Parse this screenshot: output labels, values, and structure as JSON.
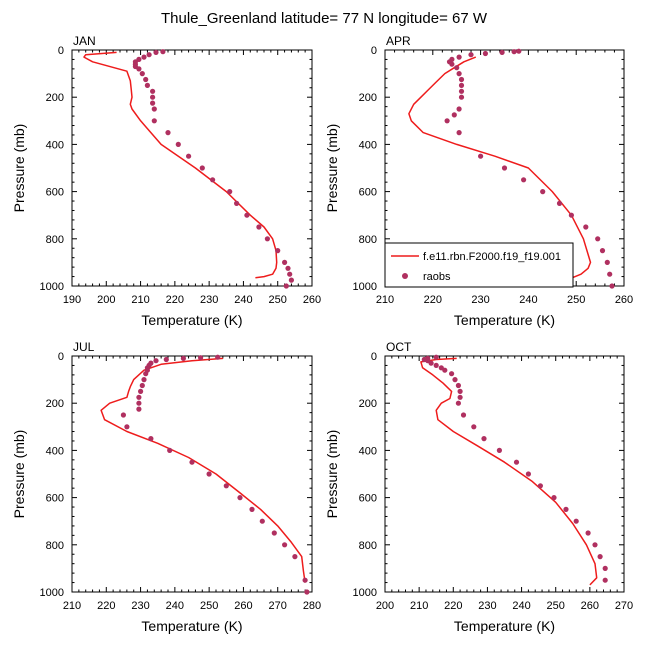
{
  "figure": {
    "title": "Thule_Greenland  latitude= 77 N longitude= 67 W",
    "colors": {
      "model": "#ee1c1c",
      "obs": "#b03060",
      "axis": "#000000"
    },
    "legend": {
      "model_label": "f.e11.rbn.F2000.f19_f19.001",
      "obs_label": "raobs"
    }
  },
  "chart_data": [
    {
      "type": "line",
      "panel": "JAN",
      "xlabel": "Temperature (K)",
      "ylabel": "Pressure (mb)",
      "xlim": [
        190,
        260
      ],
      "xticks": [
        190,
        200,
        210,
        220,
        230,
        240,
        250,
        260
      ],
      "ylim": [
        1000,
        0
      ],
      "yticks": [
        0,
        200,
        400,
        600,
        800,
        1000
      ],
      "model": {
        "name": "f.e11.rbn.F2000.f19_f19.001",
        "temperature": [
          203,
          194,
          193.5,
          196,
          206,
          207,
          207.3,
          207.5,
          207,
          207.5,
          210,
          216,
          226,
          235,
          242,
          246,
          248.5,
          249.5,
          249.7,
          249.5,
          248.5,
          246,
          243.5
        ],
        "pressure": [
          10,
          20,
          30,
          50,
          90,
          130,
          170,
          200,
          230,
          250,
          300,
          400,
          500,
          600,
          700,
          750,
          800,
          850,
          900,
          925,
          950,
          960,
          965
        ]
      },
      "obs": {
        "name": "raobs",
        "temperature": [
          216.5,
          214.5,
          212.5,
          211,
          209.5,
          208.5,
          208.5,
          208.5,
          209.5,
          210.5,
          211.5,
          212,
          213.5,
          213.5,
          213.5,
          214,
          214,
          218,
          221,
          224,
          228,
          231,
          236,
          238,
          241,
          244.5,
          247,
          250,
          252,
          253,
          253.5,
          254,
          252.5
        ],
        "pressure": [
          7,
          10,
          20,
          30,
          40,
          50,
          60,
          70,
          80,
          100,
          125,
          150,
          175,
          200,
          225,
          250,
          300,
          350,
          400,
          450,
          500,
          550,
          600,
          650,
          700,
          750,
          800,
          850,
          900,
          925,
          950,
          975,
          1000
        ]
      }
    },
    {
      "type": "line",
      "panel": "APR",
      "xlabel": "Temperature (K)",
      "ylabel": "Pressure (mb)",
      "xlim": [
        210,
        260
      ],
      "xticks": [
        210,
        220,
        230,
        240,
        250,
        260
      ],
      "ylim": [
        1000,
        0
      ],
      "yticks": [
        0,
        200,
        400,
        600,
        800,
        1000
      ],
      "model": {
        "name": "f.e11.rbn.F2000.f19_f19.001",
        "temperature": [
          229,
          226.5,
          224.5,
          222.5,
          220.5,
          219,
          217.5,
          216,
          215,
          215.5,
          218,
          225,
          233,
          240,
          245,
          249,
          251.5,
          253,
          252.5,
          251,
          248
        ],
        "pressure": [
          30,
          50,
          75,
          100,
          140,
          170,
          200,
          230,
          270,
          300,
          350,
          400,
          450,
          500,
          600,
          700,
          800,
          900,
          925,
          950,
          975
        ]
      },
      "obs": {
        "name": "raobs",
        "temperature": [
          238,
          237,
          234.5,
          231,
          228,
          225.5,
          224,
          223.5,
          224,
          225,
          225.5,
          226,
          226,
          226,
          226,
          225.5,
          224.5,
          223,
          225.5,
          230,
          235,
          239,
          243,
          246.5,
          249,
          252,
          254.5,
          255.5,
          256.5,
          257,
          257.5
        ],
        "pressure": [
          5,
          7,
          10,
          15,
          20,
          30,
          40,
          50,
          60,
          75,
          100,
          125,
          150,
          175,
          200,
          250,
          275,
          300,
          350,
          450,
          500,
          550,
          600,
          650,
          700,
          750,
          800,
          850,
          900,
          950,
          1000
        ]
      }
    },
    {
      "type": "line",
      "panel": "JUL",
      "xlabel": "Temperature (K)",
      "ylabel": "Pressure (mb)",
      "xlim": [
        210,
        280
      ],
      "xticks": [
        210,
        220,
        230,
        240,
        250,
        260,
        270,
        280
      ],
      "ylim": [
        1000,
        0
      ],
      "yticks": [
        0,
        200,
        400,
        600,
        800,
        1000
      ],
      "model": {
        "name": "f.e11.rbn.F2000.f19_f19.001",
        "temperature": [
          254,
          245,
          236,
          231,
          228,
          227,
          226.5,
          226,
          221,
          218.5,
          219.5,
          226,
          235,
          244,
          252,
          259,
          265,
          270,
          274,
          277,
          277.5,
          278
        ],
        "pressure": [
          10,
          20,
          35,
          60,
          100,
          130,
          150,
          175,
          200,
          230,
          270,
          320,
          370,
          430,
          500,
          580,
          650,
          720,
          790,
          850,
          910,
          960
        ]
      },
      "obs": {
        "name": "raobs",
        "temperature": [
          252.5,
          247.5,
          242.5,
          237.5,
          234.5,
          233,
          232.5,
          232,
          232,
          231.5,
          231,
          230.5,
          230,
          229.5,
          229.5,
          229.5,
          225,
          226,
          233,
          238.5,
          245,
          250,
          255,
          259,
          262.5,
          265.5,
          269,
          272,
          275,
          278,
          278.5
        ],
        "pressure": [
          5,
          7,
          10,
          15,
          20,
          30,
          40,
          50,
          60,
          75,
          100,
          125,
          150,
          175,
          200,
          225,
          250,
          300,
          350,
          400,
          450,
          500,
          550,
          600,
          650,
          700,
          750,
          800,
          850,
          950,
          1000
        ]
      }
    },
    {
      "type": "line",
      "panel": "OCT",
      "xlabel": "Temperature (K)",
      "ylabel": "Pressure (mb)",
      "xlim": [
        200,
        270
      ],
      "xticks": [
        200,
        210,
        220,
        230,
        240,
        250,
        260,
        270
      ],
      "ylim": [
        1000,
        0
      ],
      "yticks": [
        0,
        200,
        400,
        600,
        800,
        1000
      ],
      "model": {
        "name": "f.e11.rbn.F2000.f19_f19.001",
        "temperature": [
          221,
          215,
          210.5,
          211,
          214,
          217,
          219.5,
          219,
          216.5,
          215,
          215.5,
          220,
          227,
          235,
          243,
          250,
          255,
          259,
          261.5,
          262,
          260
        ],
        "pressure": [
          10,
          15,
          25,
          50,
          80,
          115,
          150,
          180,
          200,
          230,
          270,
          320,
          380,
          450,
          530,
          620,
          710,
          800,
          880,
          940,
          970
        ]
      },
      "obs": {
        "name": "raobs",
        "temperature": [
          215,
          212.5,
          211.5,
          212.5,
          213.5,
          215,
          216.5,
          217.5,
          219.5,
          220.5,
          221.5,
          222,
          222,
          221.5,
          223,
          226,
          229,
          233.5,
          238.5,
          242,
          245.5,
          249.5,
          253,
          256,
          259.5,
          261.5,
          263,
          264.5,
          264.5
        ],
        "pressure": [
          5,
          10,
          15,
          20,
          30,
          40,
          50,
          60,
          75,
          100,
          125,
          150,
          175,
          200,
          250,
          300,
          350,
          400,
          450,
          500,
          550,
          600,
          650,
          700,
          750,
          800,
          850,
          900,
          950
        ]
      }
    }
  ]
}
